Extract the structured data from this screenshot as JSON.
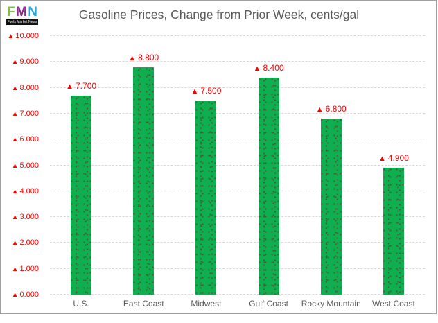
{
  "logo": {
    "letters": [
      "F",
      "M",
      "N"
    ],
    "letter_colors": [
      "#7dc242",
      "#92278f",
      "#27aae1"
    ],
    "caption": "Fuels Market News"
  },
  "title": "Gasoline Prices, Change from Prior Week, cents/gal",
  "colors": {
    "bar_green": "#0fae4f",
    "bar_dot": "#44603a",
    "label_red": "#fe0000",
    "axis_text": "#595959",
    "gridline": "#d9d9d9",
    "frame_border": "#a0a0a0"
  },
  "up_marker": "▲",
  "chart_data": {
    "type": "bar",
    "title": "Gasoline Prices, Change from Prior Week, cents/gal",
    "categories": [
      "U.S.",
      "East Coast",
      "Midwest",
      "Gulf Coast",
      "Rocky Mountain",
      "West Coast"
    ],
    "values": [
      7.7,
      8.8,
      7.5,
      8.4,
      6.8,
      4.9
    ],
    "data_labels": [
      "7.700",
      "8.800",
      "7.500",
      "8.400",
      "6.800",
      "4.900"
    ],
    "data_label_marker": "▲",
    "y_tick_labels": [
      "0.000",
      "1.000",
      "2.000",
      "3.000",
      "4.000",
      "5.000",
      "6.000",
      "7.000",
      "8.000",
      "9.000",
      "10.000"
    ],
    "y_tick_marker": "▲",
    "ylim": [
      0,
      10
    ],
    "y_step": 1,
    "xlabel": "",
    "ylabel": "",
    "grid": "horizontal-dashed",
    "legend": "none",
    "bar_pattern": "dotted"
  }
}
